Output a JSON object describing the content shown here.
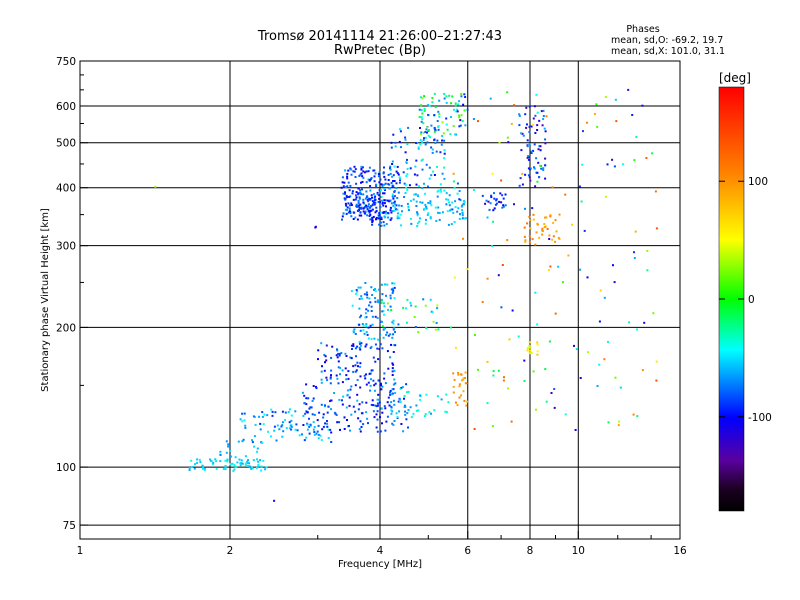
{
  "chart_data": {
    "type": "scatter",
    "title": "Tromsø 20141114 21:26:00–21:27:43",
    "subtitle": "RwPretec (Bp)",
    "xlabel": "Frequency [MHz]",
    "ylabel": "Stationary phase Virtual Height [km]",
    "x_scale": "log",
    "y_scale": "log",
    "xlim": [
      1,
      16
    ],
    "ylim": [
      70,
      750
    ],
    "x_ticks": [
      1,
      2,
      4,
      6,
      8,
      10,
      16
    ],
    "x_tick_labels": [
      "1",
      "2",
      "4",
      "6",
      "8",
      "10",
      "16"
    ],
    "y_ticks": [
      75,
      100,
      200,
      300,
      400,
      500,
      600,
      750
    ],
    "y_tick_labels": [
      "75",
      "100",
      "200",
      "300",
      "400",
      "500",
      "600",
      "750"
    ],
    "grid": true,
    "stats": {
      "title": "Phases",
      "line_o": "mean, sd,O: -69.2, 19.7",
      "line_x": "mean, sd,X: 101.0, 31.1"
    },
    "colorbar": {
      "label": "[deg]",
      "range": [
        -180,
        180
      ],
      "ticks": [
        100,
        0,
        -100
      ],
      "tick_labels": [
        "100",
        "0",
        "-100"
      ],
      "orientation": "vertical"
    },
    "clusters": [
      {
        "x": [
          1.65,
          2.4
        ],
        "y": [
          98,
          104
        ],
        "phase": [
          -65,
          -35
        ],
        "n": 70
      },
      {
        "x": [
          1.9,
          2.3
        ],
        "y": [
          104,
          114
        ],
        "phase": [
          -70,
          -40
        ],
        "n": 15
      },
      {
        "x": [
          2.1,
          3.2
        ],
        "y": [
          112,
          135
        ],
        "phase": [
          -95,
          -40
        ],
        "n": 90
      },
      {
        "x": [
          2.8,
          4.6
        ],
        "y": [
          118,
          152
        ],
        "phase": [
          -115,
          -55
        ],
        "n": 160
      },
      {
        "x": [
          3.0,
          4.3
        ],
        "y": [
          150,
          185
        ],
        "phase": [
          -115,
          -60
        ],
        "n": 110
      },
      {
        "x": [
          3.5,
          4.3
        ],
        "y": [
          180,
          250
        ],
        "phase": [
          -95,
          -40
        ],
        "n": 110
      },
      {
        "x": [
          4.0,
          5.3
        ],
        "y": [
          195,
          232
        ],
        "phase": [
          -80,
          40
        ],
        "n": 35
      },
      {
        "x": [
          4.2,
          5.5
        ],
        "y": [
          128,
          148
        ],
        "phase": [
          -75,
          -30
        ],
        "n": 40
      },
      {
        "x": [
          5.6,
          6.0
        ],
        "y": [
          135,
          160
        ],
        "phase": [
          80,
          110
        ],
        "n": 25
      },
      {
        "x": [
          3.35,
          4.4
        ],
        "y": [
          340,
          445
        ],
        "phase": [
          -110,
          -60
        ],
        "n": 240
      },
      {
        "x": [
          3.6,
          4.1
        ],
        "y": [
          330,
          390
        ],
        "phase": [
          -110,
          -70
        ],
        "n": 60
      },
      {
        "x": [
          4.0,
          6.0
        ],
        "y": [
          330,
          400
        ],
        "phase": [
          -75,
          -35
        ],
        "n": 120
      },
      {
        "x": [
          4.2,
          5.4
        ],
        "y": [
          400,
          540
        ],
        "phase": [
          -110,
          -30
        ],
        "n": 90
      },
      {
        "x": [
          4.8,
          6.0
        ],
        "y": [
          520,
          640
        ],
        "phase": [
          -100,
          30
        ],
        "n": 80
      },
      {
        "x": [
          6.4,
          7.2
        ],
        "y": [
          355,
          390
        ],
        "phase": [
          -115,
          -70
        ],
        "n": 25
      },
      {
        "x": [
          7.6,
          8.6
        ],
        "y": [
          400,
          600
        ],
        "phase": [
          -130,
          -60
        ],
        "n": 70
      },
      {
        "x": [
          7.8,
          9.2
        ],
        "y": [
          300,
          350
        ],
        "phase": [
          80,
          120
        ],
        "n": 40
      },
      {
        "x": [
          7.9,
          8.3
        ],
        "y": [
          175,
          188
        ],
        "phase": [
          40,
          70
        ],
        "n": 12
      },
      {
        "x": [
          5.5,
          14.5
        ],
        "y": [
          120,
          660
        ],
        "phase": [
          -130,
          140
        ],
        "n": 150
      },
      {
        "x": [
          1.4,
          1.42
        ],
        "y": [
          398,
          402
        ],
        "phase": [
          30,
          35
        ],
        "n": 1
      },
      {
        "x": [
          2.95,
          3.0
        ],
        "y": [
          328,
          332
        ],
        "phase": [
          -115,
          -110
        ],
        "n": 2
      },
      {
        "x": [
          2.45,
          2.5
        ],
        "y": [
          84,
          86
        ],
        "phase": [
          -110,
          -105
        ],
        "n": 1
      }
    ]
  }
}
